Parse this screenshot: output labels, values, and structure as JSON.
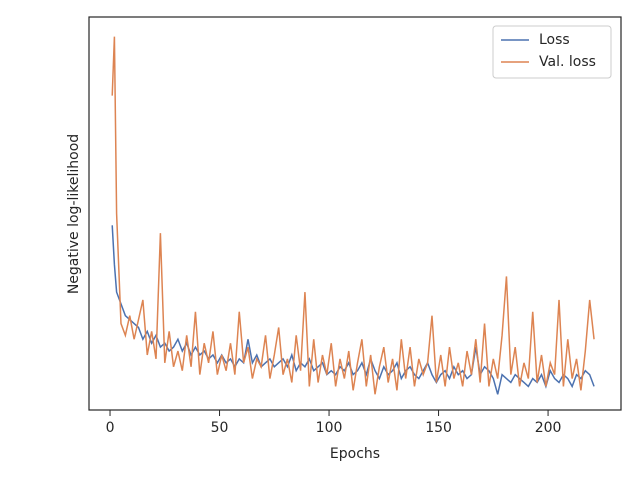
{
  "chart_data": {
    "type": "line",
    "xlabel": "Epochs",
    "ylabel": "Negative log-likelihood",
    "x": [
      1,
      2,
      3,
      5,
      7,
      9,
      11,
      13,
      15,
      17,
      19,
      21,
      23,
      25,
      27,
      29,
      31,
      33,
      35,
      37,
      39,
      41,
      43,
      45,
      47,
      49,
      51,
      53,
      55,
      57,
      59,
      61,
      63,
      65,
      67,
      69,
      71,
      73,
      75,
      77,
      79,
      81,
      83,
      85,
      87,
      89,
      91,
      93,
      95,
      97,
      99,
      101,
      103,
      105,
      107,
      109,
      111,
      113,
      115,
      117,
      119,
      121,
      123,
      125,
      127,
      129,
      131,
      133,
      135,
      137,
      139,
      141,
      143,
      145,
      147,
      149,
      151,
      153,
      155,
      157,
      159,
      161,
      163,
      165,
      167,
      169,
      171,
      173,
      175,
      177,
      179,
      181,
      183,
      185,
      187,
      189,
      191,
      193,
      195,
      197,
      199,
      201,
      203,
      205,
      207,
      209,
      211,
      213,
      215,
      217,
      219,
      221
    ],
    "series": [
      {
        "name": "Loss",
        "color": "#4c72b0",
        "values": [
          47,
          37,
          30,
          27,
          24,
          23,
          22,
          21,
          18,
          20,
          17,
          19,
          16,
          17,
          15,
          16,
          18,
          15,
          17,
          14,
          16,
          14,
          15,
          13,
          14,
          12,
          14,
          12,
          13,
          11,
          13,
          12,
          18,
          12,
          14,
          11,
          12,
          13,
          11,
          12,
          13,
          11,
          14,
          10,
          12,
          11,
          13,
          10,
          11,
          12,
          9,
          10,
          9,
          11,
          10,
          12,
          9,
          10,
          12,
          9,
          13,
          10,
          8,
          11,
          9,
          10,
          12,
          8,
          10,
          11,
          9,
          8,
          10,
          12,
          9,
          7,
          9,
          10,
          8,
          11,
          9,
          10,
          8,
          9,
          16,
          9,
          11,
          10,
          8,
          4,
          9,
          8,
          7,
          9,
          8,
          7,
          6,
          8,
          7,
          9,
          6,
          10,
          8,
          7,
          9,
          8,
          6,
          9,
          8,
          10,
          9,
          6
        ]
      },
      {
        "name": "Val. loss",
        "color": "#dd8452",
        "values": [
          80,
          95,
          50,
          22,
          19,
          24,
          18,
          23,
          28,
          14,
          20,
          13,
          45,
          12,
          20,
          11,
          15,
          10,
          19,
          11,
          25,
          9,
          17,
          12,
          20,
          9,
          14,
          10,
          17,
          9,
          25,
          12,
          16,
          8,
          13,
          11,
          19,
          8,
          14,
          21,
          9,
          13,
          7,
          19,
          10,
          30,
          6,
          18,
          7,
          14,
          9,
          17,
          6,
          13,
          8,
          15,
          5,
          12,
          18,
          6,
          14,
          4,
          11,
          16,
          7,
          13,
          5,
          18,
          8,
          16,
          6,
          13,
          9,
          12,
          24,
          7,
          14,
          6,
          16,
          8,
          12,
          6,
          15,
          9,
          18,
          7,
          22,
          6,
          13,
          8,
          19,
          34,
          9,
          16,
          6,
          12,
          8,
          25,
          7,
          14,
          6,
          12,
          9,
          28,
          6,
          18,
          8,
          13,
          5,
          15,
          28,
          18
        ]
      }
    ],
    "xlim": [
      -9.6,
      233.3
    ],
    "ylim": [
      0,
      100
    ],
    "xticks": [
      0,
      50,
      100,
      150,
      200
    ],
    "legend": "upper right"
  }
}
